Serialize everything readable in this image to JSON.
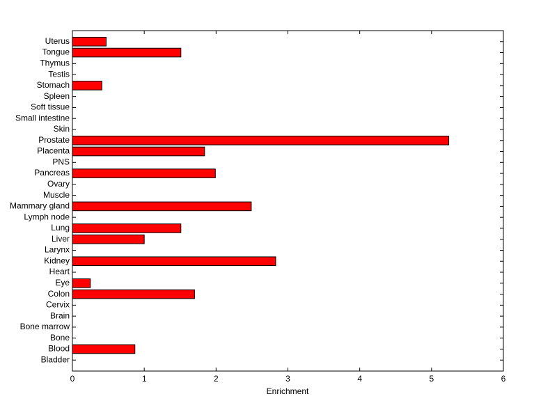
{
  "chart_data": {
    "type": "barh",
    "x_label": "Enrichment",
    "categories": [
      "Bladder",
      "Blood",
      "Bone",
      "Bone marrow",
      "Brain",
      "Cervix",
      "Colon",
      "Eye",
      "Heart",
      "Kidney",
      "Larynx",
      "Liver",
      "Lung",
      "Lymph node",
      "Mammary gland",
      "Muscle",
      "Ovary",
      "Pancreas",
      "PNS",
      "Placenta",
      "Prostate",
      "Skin",
      "Small intestine",
      "Soft tissue",
      "Spleen",
      "Stomach",
      "Testis",
      "Thymus",
      "Tongue",
      "Uterus"
    ],
    "values": [
      0,
      0.87,
      0,
      0,
      0,
      0,
      1.7,
      0.25,
      0,
      2.83,
      0,
      1.0,
      1.51,
      0,
      2.49,
      0,
      0,
      1.99,
      0,
      1.84,
      5.24,
      0,
      0,
      0,
      0,
      0.41,
      0,
      0,
      1.51,
      0.47
    ],
    "color": "#ff0000",
    "xlim": [
      0,
      6
    ],
    "xticks": [
      0,
      1,
      2,
      3,
      4,
      5,
      6
    ],
    "grid": false
  }
}
